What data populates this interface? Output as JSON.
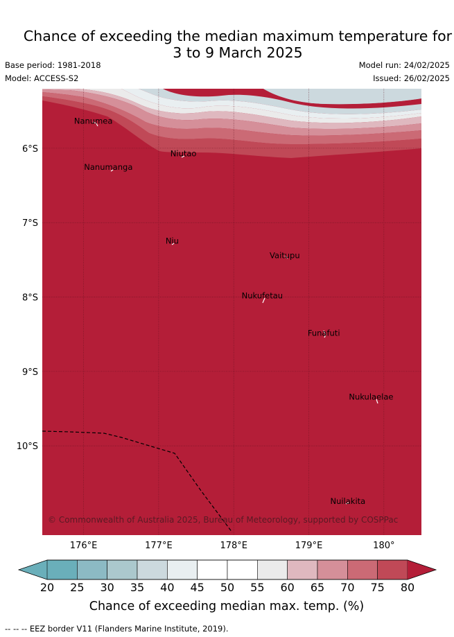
{
  "title_line1": "Chance of exceeding the median maximum temperature for",
  "title_line2": "3 to 9 March 2025",
  "base_period": "Base period: 1981-2018",
  "model": "Model: ACCESS-S2",
  "model_run": "Model run: 24/02/2025",
  "issued": "Issued: 26/02/2025",
  "map": {
    "lon_range": [
      175.45,
      180.5
    ],
    "lat_range": [
      -11.2,
      -5.2
    ],
    "lon_ticks": [
      {
        "value": 176,
        "label": "176°E"
      },
      {
        "value": 177,
        "label": "177°E"
      },
      {
        "value": 178,
        "label": "178°E"
      },
      {
        "value": 179,
        "label": "179°E"
      },
      {
        "value": 180,
        "label": "180°"
      }
    ],
    "lat_ticks": [
      {
        "value": -6,
        "label": "6°S"
      },
      {
        "value": -7,
        "label": "7°S"
      },
      {
        "value": -8,
        "label": "8°S"
      },
      {
        "value": -9,
        "label": "9°S"
      },
      {
        "value": -10,
        "label": "10°S"
      }
    ],
    "background_color": "#b41e38",
    "places": [
      {
        "name": "Nanumea",
        "lon": 176.13,
        "lat": -5.67
      },
      {
        "name": "Nanumanga",
        "lon": 176.33,
        "lat": -6.29
      },
      {
        "name": "Niutao",
        "lon": 177.33,
        "lat": -6.11
      },
      {
        "name": "Niu",
        "lon": 177.18,
        "lat": -7.28
      },
      {
        "name": "Vaitupu",
        "lon": 178.68,
        "lat": -7.48
      },
      {
        "name": "Nukufetau",
        "lon": 178.38,
        "lat": -8.02
      },
      {
        "name": "Funafuti",
        "lon": 179.2,
        "lat": -8.52
      },
      {
        "name": "Nukulaelae",
        "lon": 179.83,
        "lat": -9.38
      },
      {
        "name": "Nuilakita",
        "lon": 179.52,
        "lat": -10.78
      }
    ],
    "credit": "© Commonwealth of Australia 2025, Bureau of Meteorology, supported by COSPPac"
  },
  "colorbar": {
    "levels": [
      "20",
      "25",
      "30",
      "35",
      "40",
      "45",
      "50",
      "55",
      "60",
      "65",
      "70",
      "75",
      "80"
    ],
    "colors": [
      "#6aafba",
      "#8cbac4",
      "#abc8cd",
      "#ccd9de",
      "#e9eff1",
      "#ffffff",
      "#ffffff",
      "#ebebeb",
      "#dfb8bf",
      "#d58f99",
      "#cb6a75",
      "#c04957",
      "#b41e38"
    ],
    "low_color": "#6aafba",
    "high_color": "#b41e38",
    "title": "Chance of exceeding median max. temp. (%)"
  },
  "footnote": "-- -- -- EEZ border V11 (Flanders Marine Institute, 2019)."
}
